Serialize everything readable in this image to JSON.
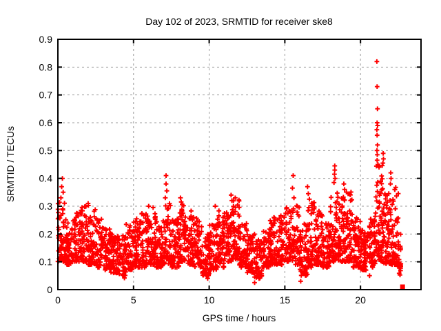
{
  "page": {
    "background": "#ffffff"
  },
  "chart_data": {
    "type": "scatter",
    "title": "Day 102 of 2023, SRMTID for receiver ske8",
    "xlabel": "GPS time / hours",
    "ylabel": "SRMTID / TECUs",
    "xlim": [
      0,
      24
    ],
    "ylim": [
      0,
      0.9
    ],
    "xticks": [
      {
        "v": 0,
        "label": "0"
      },
      {
        "v": 5,
        "label": "5"
      },
      {
        "v": 10,
        "label": "10"
      },
      {
        "v": 15,
        "label": "15"
      },
      {
        "v": 20,
        "label": "20"
      }
    ],
    "yticks": [
      {
        "v": 0,
        "label": "0"
      },
      {
        "v": 0.1,
        "label": "0.1"
      },
      {
        "v": 0.2,
        "label": "0.2"
      },
      {
        "v": 0.3,
        "label": "0.3"
      },
      {
        "v": 0.4,
        "label": "0.4"
      },
      {
        "v": 0.5,
        "label": "0.5"
      },
      {
        "v": 0.6,
        "label": "0.6"
      },
      {
        "v": 0.7,
        "label": "0.7"
      },
      {
        "v": 0.8,
        "label": "0.8"
      },
      {
        "v": 0.9,
        "label": "0.9"
      }
    ],
    "grid": "dashed",
    "grid_color": "#9c9c9c",
    "axis_color": "#000000",
    "marker": "plus",
    "marker_color": "#ff0000",
    "series_name": "SRMTID",
    "band_bins_format": [
      "t_start_hours",
      "t_end_hours",
      "value_low",
      "value_high",
      "point_count"
    ],
    "band": [
      [
        0.0,
        0.5,
        0.1,
        0.32,
        60
      ],
      [
        0.5,
        1.0,
        0.09,
        0.26,
        55
      ],
      [
        1.0,
        1.5,
        0.1,
        0.28,
        55
      ],
      [
        1.5,
        2.0,
        0.1,
        0.3,
        55
      ],
      [
        2.0,
        2.5,
        0.09,
        0.31,
        55
      ],
      [
        2.5,
        3.0,
        0.08,
        0.26,
        55
      ],
      [
        3.0,
        3.5,
        0.07,
        0.22,
        55
      ],
      [
        3.5,
        4.0,
        0.06,
        0.2,
        55
      ],
      [
        4.0,
        4.5,
        0.05,
        0.2,
        50
      ],
      [
        4.5,
        5.0,
        0.07,
        0.24,
        55
      ],
      [
        5.0,
        5.5,
        0.08,
        0.26,
        55
      ],
      [
        5.5,
        6.0,
        0.08,
        0.28,
        55
      ],
      [
        6.0,
        6.5,
        0.09,
        0.3,
        55
      ],
      [
        6.5,
        7.0,
        0.08,
        0.25,
        55
      ],
      [
        7.0,
        7.5,
        0.09,
        0.31,
        55
      ],
      [
        7.5,
        8.0,
        0.08,
        0.26,
        55
      ],
      [
        8.0,
        8.5,
        0.1,
        0.32,
        60
      ],
      [
        8.5,
        9.0,
        0.09,
        0.29,
        55
      ],
      [
        9.0,
        9.5,
        0.08,
        0.26,
        55
      ],
      [
        9.5,
        10.0,
        0.05,
        0.2,
        50
      ],
      [
        10.0,
        10.5,
        0.07,
        0.24,
        55
      ],
      [
        10.5,
        11.0,
        0.08,
        0.29,
        55
      ],
      [
        11.0,
        11.5,
        0.1,
        0.28,
        55
      ],
      [
        11.5,
        12.0,
        0.11,
        0.33,
        65
      ],
      [
        12.0,
        12.5,
        0.08,
        0.24,
        55
      ],
      [
        12.5,
        13.0,
        0.06,
        0.2,
        55
      ],
      [
        13.0,
        13.5,
        0.04,
        0.18,
        50
      ],
      [
        13.5,
        14.0,
        0.08,
        0.22,
        55
      ],
      [
        14.0,
        14.5,
        0.09,
        0.26,
        55
      ],
      [
        14.5,
        15.0,
        0.09,
        0.28,
        55
      ],
      [
        15.0,
        15.5,
        0.1,
        0.3,
        55
      ],
      [
        15.5,
        16.0,
        0.09,
        0.31,
        55
      ],
      [
        16.0,
        16.5,
        0.05,
        0.24,
        50
      ],
      [
        16.5,
        17.0,
        0.08,
        0.33,
        55
      ],
      [
        17.0,
        17.5,
        0.09,
        0.29,
        55
      ],
      [
        17.5,
        18.0,
        0.08,
        0.24,
        55
      ],
      [
        18.0,
        18.5,
        0.1,
        0.36,
        60
      ],
      [
        18.5,
        19.0,
        0.1,
        0.34,
        60
      ],
      [
        19.0,
        19.5,
        0.1,
        0.36,
        55
      ],
      [
        19.5,
        20.0,
        0.08,
        0.26,
        55
      ],
      [
        20.0,
        20.5,
        0.07,
        0.22,
        55
      ],
      [
        20.5,
        21.0,
        0.08,
        0.28,
        55
      ],
      [
        21.0,
        21.5,
        0.1,
        0.45,
        75
      ],
      [
        21.5,
        22.0,
        0.09,
        0.35,
        60
      ],
      [
        22.0,
        22.5,
        0.09,
        0.38,
        60
      ],
      [
        22.5,
        22.7,
        0.05,
        0.2,
        22
      ]
    ],
    "peaks": [
      [
        0.2,
        0.33
      ],
      [
        0.25,
        0.37
      ],
      [
        0.3,
        0.4
      ],
      [
        0.35,
        0.35
      ],
      [
        2.0,
        0.31
      ],
      [
        4.4,
        0.042
      ],
      [
        6.0,
        0.3
      ],
      [
        7.1,
        0.33
      ],
      [
        7.15,
        0.41
      ],
      [
        7.15,
        0.38
      ],
      [
        7.2,
        0.355
      ],
      [
        8.1,
        0.33
      ],
      [
        8.15,
        0.315
      ],
      [
        9.9,
        0.04
      ],
      [
        10.4,
        0.3
      ],
      [
        11.45,
        0.34
      ],
      [
        11.5,
        0.32
      ],
      [
        13.0,
        0.025
      ],
      [
        15.5,
        0.365
      ],
      [
        15.55,
        0.41
      ],
      [
        15.6,
        0.33
      ],
      [
        16.05,
        0.03
      ],
      [
        16.5,
        0.37
      ],
      [
        16.55,
        0.345
      ],
      [
        18.25,
        0.385
      ],
      [
        18.28,
        0.415
      ],
      [
        18.3,
        0.445
      ],
      [
        18.3,
        0.43
      ],
      [
        18.32,
        0.4
      ],
      [
        18.9,
        0.38
      ],
      [
        18.95,
        0.36
      ],
      [
        20.6,
        0.05
      ],
      [
        21.08,
        0.82
      ],
      [
        21.1,
        0.73
      ],
      [
        21.12,
        0.65
      ],
      [
        21.1,
        0.6
      ],
      [
        21.13,
        0.59
      ],
      [
        21.08,
        0.575
      ],
      [
        21.1,
        0.555
      ],
      [
        21.12,
        0.52
      ],
      [
        21.09,
        0.5
      ],
      [
        21.11,
        0.485
      ],
      [
        21.1,
        0.465
      ],
      [
        21.15,
        0.45
      ],
      [
        21.48,
        0.455
      ],
      [
        21.5,
        0.49
      ],
      [
        21.52,
        0.47
      ],
      [
        21.98,
        0.38
      ],
      [
        22.0,
        0.42
      ],
      [
        22.02,
        0.4
      ]
    ],
    "last_point": {
      "t": 22.78,
      "v": 0.01,
      "marker": "filled-square"
    }
  }
}
